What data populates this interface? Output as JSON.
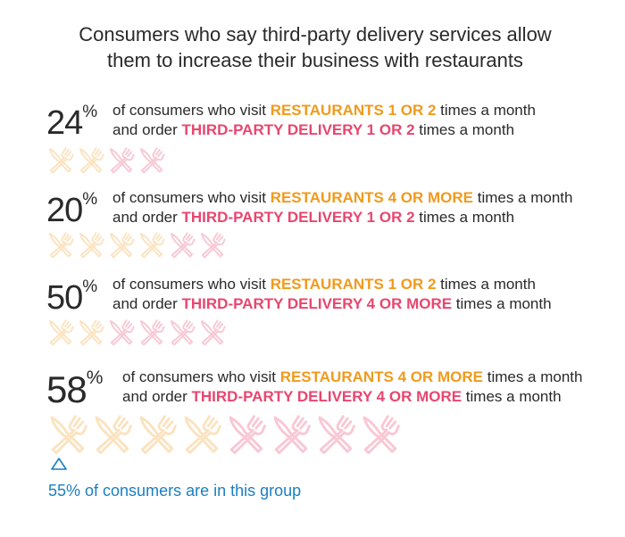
{
  "title": {
    "line1": "Consumers who say third-party delivery services allow",
    "line2": "them to increase their business with restaurants"
  },
  "colors": {
    "restaurants": "#f09a1d",
    "delivery": "#e8466f",
    "note": "#1b7fc1"
  },
  "icon_name": "fork-and-knife-icon",
  "common": {
    "prefix": "of consumers who visit ",
    "mid": " times a month",
    "and_order": "and order ",
    "suffix": " times a month",
    "percent_sign": "%"
  },
  "stats": [
    {
      "value": "24",
      "restaurants": "RESTAURANTS 1 OR 2",
      "delivery": "THIRD-PARTY DELIVERY 1 OR 2",
      "icons_restaurant": 2,
      "icons_delivery": 2
    },
    {
      "value": "20",
      "restaurants": "RESTAURANTS 4 OR MORE",
      "delivery": "THIRD-PARTY DELIVERY 1 OR 2",
      "icons_restaurant": 4,
      "icons_delivery": 2
    },
    {
      "value": "50",
      "restaurants": "RESTAURANTS 1 OR 2",
      "delivery": "THIRD-PARTY DELIVERY 4 OR MORE",
      "icons_restaurant": 2,
      "icons_delivery": 4
    },
    {
      "value": "58",
      "restaurants": "RESTAURANTS 4 OR MORE",
      "delivery": "THIRD-PARTY DELIVERY 4 OR MORE",
      "icons_restaurant": 4,
      "icons_delivery": 4
    }
  ],
  "footnote": "55% of consumers are in this group"
}
